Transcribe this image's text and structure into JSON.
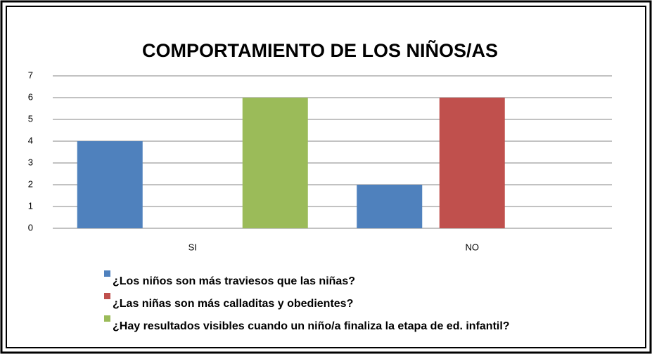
{
  "chart_data": {
    "type": "bar",
    "title": "COMPORTAMIENTO DE LOS NIÑOS/AS",
    "categories": [
      "SI",
      "NO"
    ],
    "series": [
      {
        "name": "¿Los niños son más traviesos que las niñas?",
        "color": "#4f81bd",
        "values": [
          4,
          2
        ]
      },
      {
        "name": "¿Las niñas son más calladitas y obedientes?",
        "color": "#c0504d",
        "values": [
          0,
          6
        ]
      },
      {
        "name": "¿Hay resultados visibles cuando un niño/a finaliza la etapa de ed. infantil?",
        "color": "#9bbb59",
        "values": [
          6,
          0
        ]
      }
    ],
    "ylim": [
      0,
      7
    ],
    "yticks": [
      0,
      1,
      2,
      3,
      4,
      5,
      6,
      7
    ],
    "grid": true,
    "legend": "bottom"
  }
}
